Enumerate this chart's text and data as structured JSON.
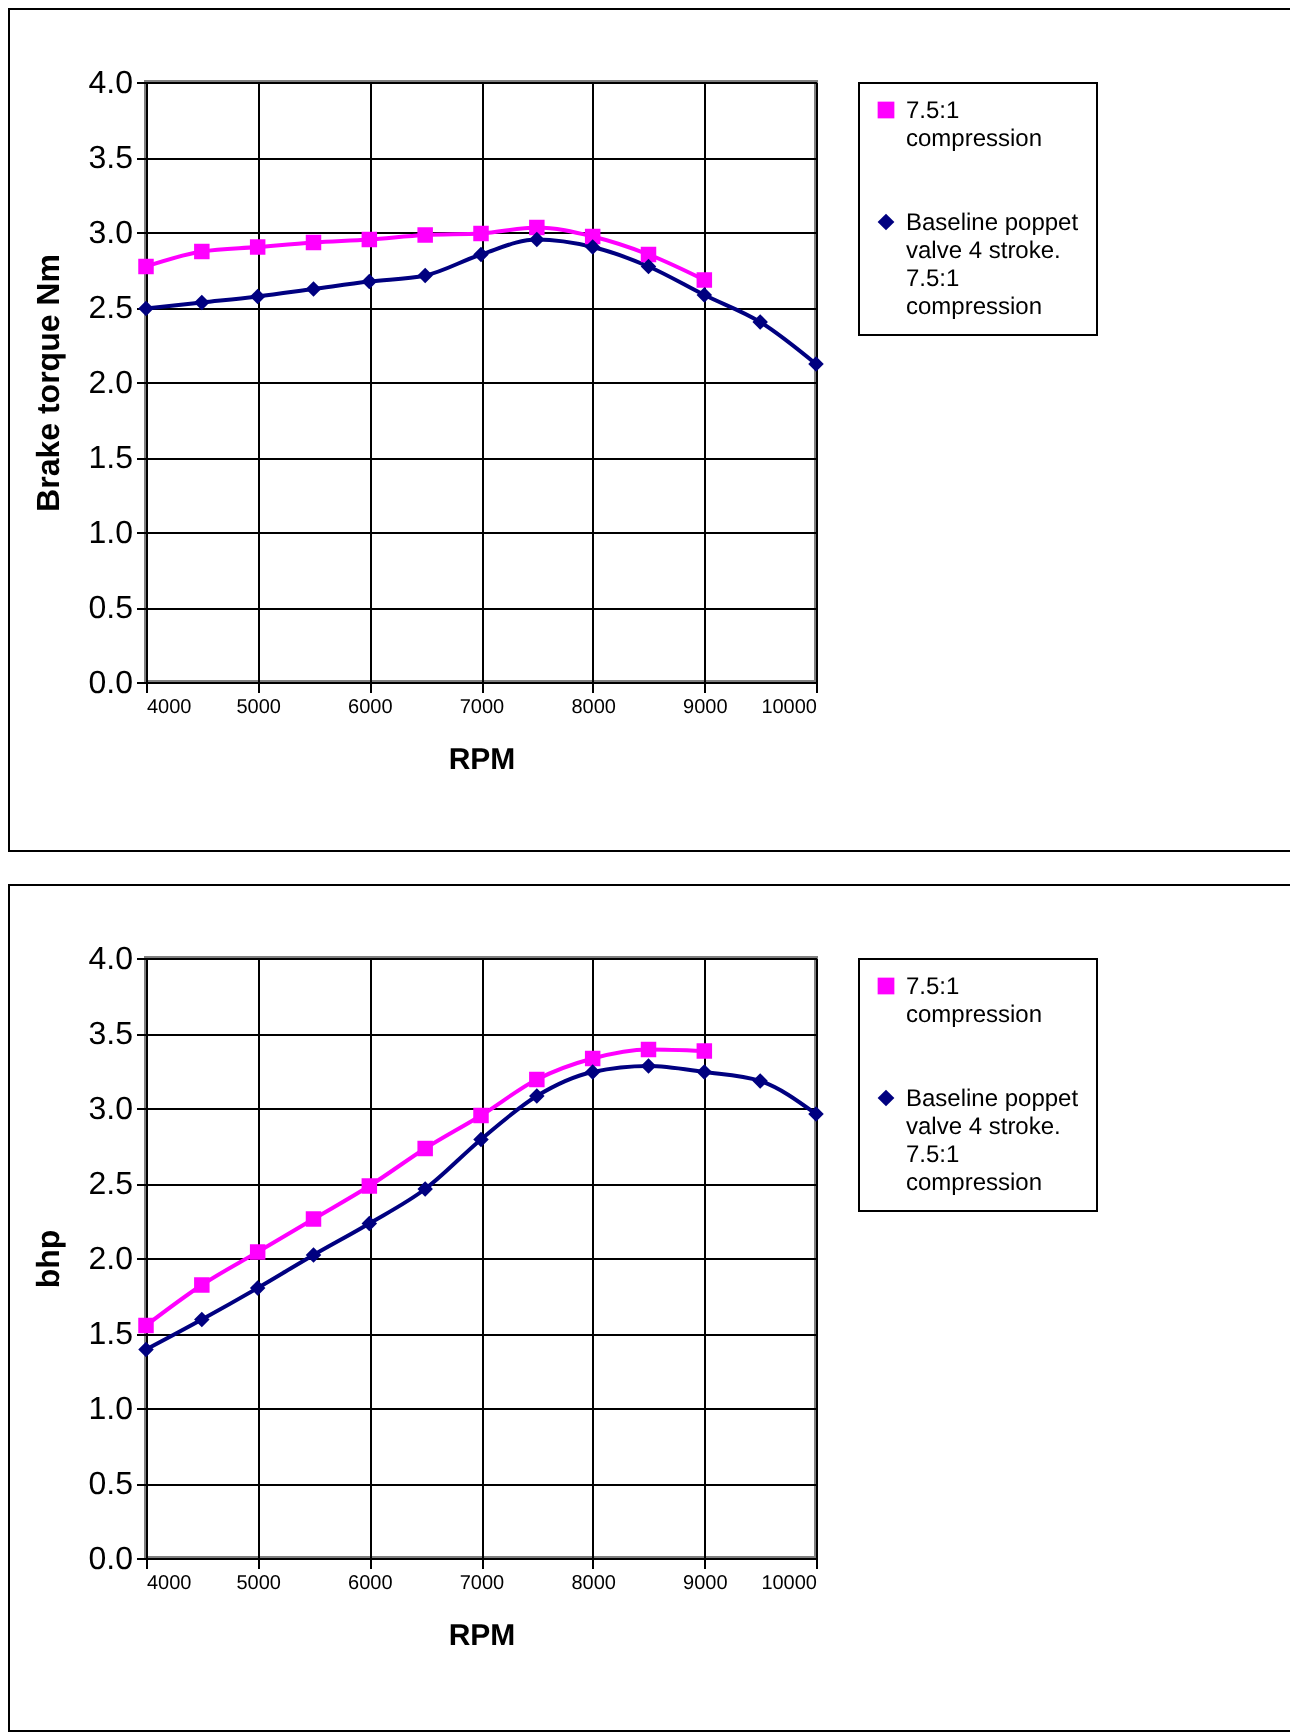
{
  "chart_data": [
    {
      "type": "line",
      "xlabel": "RPM",
      "ylabel": "Brake torque Nm",
      "xlim": [
        4000,
        10000
      ],
      "xticks": [
        4000,
        5000,
        6000,
        7000,
        8000,
        9000,
        10000
      ],
      "ylim": [
        0,
        4
      ],
      "yticks": [
        {
          "value": 0,
          "label": "0.0"
        },
        0.5,
        {
          "value": 1,
          "label": "1.0"
        },
        1.5,
        {
          "value": 2,
          "label": "2.0"
        },
        2.5,
        {
          "value": 3,
          "label": "3.0"
        },
        3.5,
        {
          "value": 4,
          "label": "4.0"
        }
      ],
      "grid": true,
      "legend": "right",
      "x": [
        4000,
        4500,
        5000,
        5500,
        6000,
        6500,
        7000,
        7500,
        8000,
        8500,
        9000,
        9500,
        10000
      ],
      "series": [
        {
          "name": "7.5:1 compression",
          "color": "#ff00ff",
          "marker": "square",
          "values": [
            2.77,
            2.87,
            2.9,
            2.93,
            2.95,
            2.98,
            2.99,
            3.03,
            2.97,
            2.85,
            2.68,
            null,
            null
          ]
        },
        {
          "name": "Baseline poppet valve 4 stroke. 7.5:1 compression",
          "color": "#000080",
          "marker": "diamond",
          "values": [
            2.49,
            2.53,
            2.57,
            2.62,
            2.67,
            2.71,
            2.85,
            2.95,
            2.9,
            2.77,
            2.58,
            2.4,
            2.12
          ]
        }
      ]
    },
    {
      "type": "line",
      "xlabel": "RPM",
      "ylabel": "bhp",
      "xlim": [
        4000,
        10000
      ],
      "xticks": [
        4000,
        5000,
        6000,
        7000,
        8000,
        9000,
        10000
      ],
      "ylim": [
        0,
        4
      ],
      "yticks": [
        {
          "value": 0,
          "label": "0.0"
        },
        0.5,
        {
          "value": 1,
          "label": "1.0"
        },
        1.5,
        {
          "value": 2,
          "label": "2.0"
        },
        2.5,
        {
          "value": 3,
          "label": "3.0"
        },
        3.5,
        {
          "value": 4,
          "label": "4.0"
        }
      ],
      "grid": true,
      "legend": "right",
      "x": [
        4000,
        4500,
        5000,
        5500,
        6000,
        6500,
        7000,
        7500,
        8000,
        8500,
        9000,
        9500,
        10000
      ],
      "series": [
        {
          "name": "7.5:1 compression",
          "color": "#ff00ff",
          "marker": "square",
          "values": [
            1.55,
            1.82,
            2.04,
            2.26,
            2.48,
            2.73,
            2.95,
            3.19,
            3.33,
            3.39,
            3.38,
            null,
            null
          ]
        },
        {
          "name": "Baseline poppet valve 4 stroke. 7.5:1 compression",
          "color": "#000080",
          "marker": "diamond",
          "values": [
            1.39,
            1.59,
            1.8,
            2.02,
            2.23,
            2.46,
            2.79,
            3.08,
            3.24,
            3.28,
            3.24,
            3.18,
            2.96
          ]
        }
      ]
    }
  ]
}
